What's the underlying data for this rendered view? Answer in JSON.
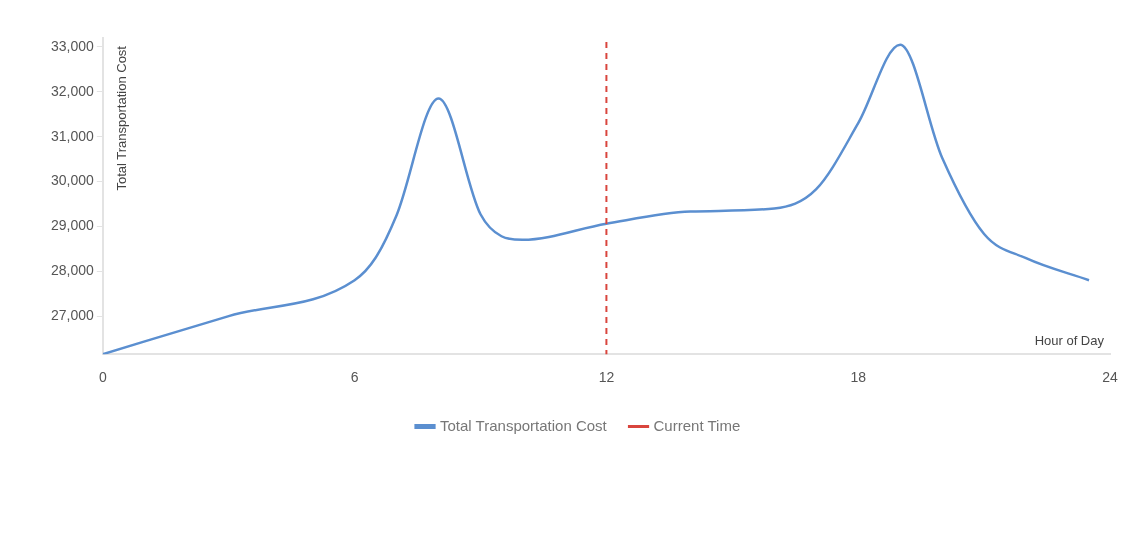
{
  "chart_data": {
    "type": "line",
    "xlabel": "Hour of Day",
    "ylabel": "Total Transportation Cost",
    "x": [
      0,
      3,
      6,
      6.5,
      7,
      8,
      9,
      9.5,
      10,
      12,
      14,
      16,
      17,
      18,
      19,
      20,
      21,
      22,
      23.5
    ],
    "series": [
      {
        "name": "Total Transportation Cost",
        "color": "#5b8fd0",
        "values": [
          26150,
          27000,
          27800,
          28300,
          29250,
          31850,
          29270,
          28780,
          28700,
          29060,
          29330,
          29400,
          29830,
          31300,
          33050,
          30530,
          28830,
          28290,
          27800
        ]
      }
    ],
    "xlim": [
      0,
      24
    ],
    "xticks": [
      0,
      6,
      12,
      18,
      24
    ],
    "ylim": [
      26150,
      33200
    ],
    "yticks": [
      {
        "value": 27000,
        "label": "27,000"
      },
      {
        "value": 28000,
        "label": "28,000"
      },
      {
        "value": 29000,
        "label": "29,000"
      },
      {
        "value": 30000,
        "label": "30,000"
      },
      {
        "value": 31000,
        "label": "31,000"
      },
      {
        "value": 32000,
        "label": "32,000"
      },
      {
        "value": 33000,
        "label": "33,000"
      }
    ],
    "ref_lines": [
      {
        "axis": "x",
        "value": 12,
        "label": "Current Time",
        "color": "#d9453d",
        "line_style": "dashed"
      }
    ],
    "legend": "bottom",
    "grid": false,
    "marker": "none",
    "line_style": "solid"
  }
}
